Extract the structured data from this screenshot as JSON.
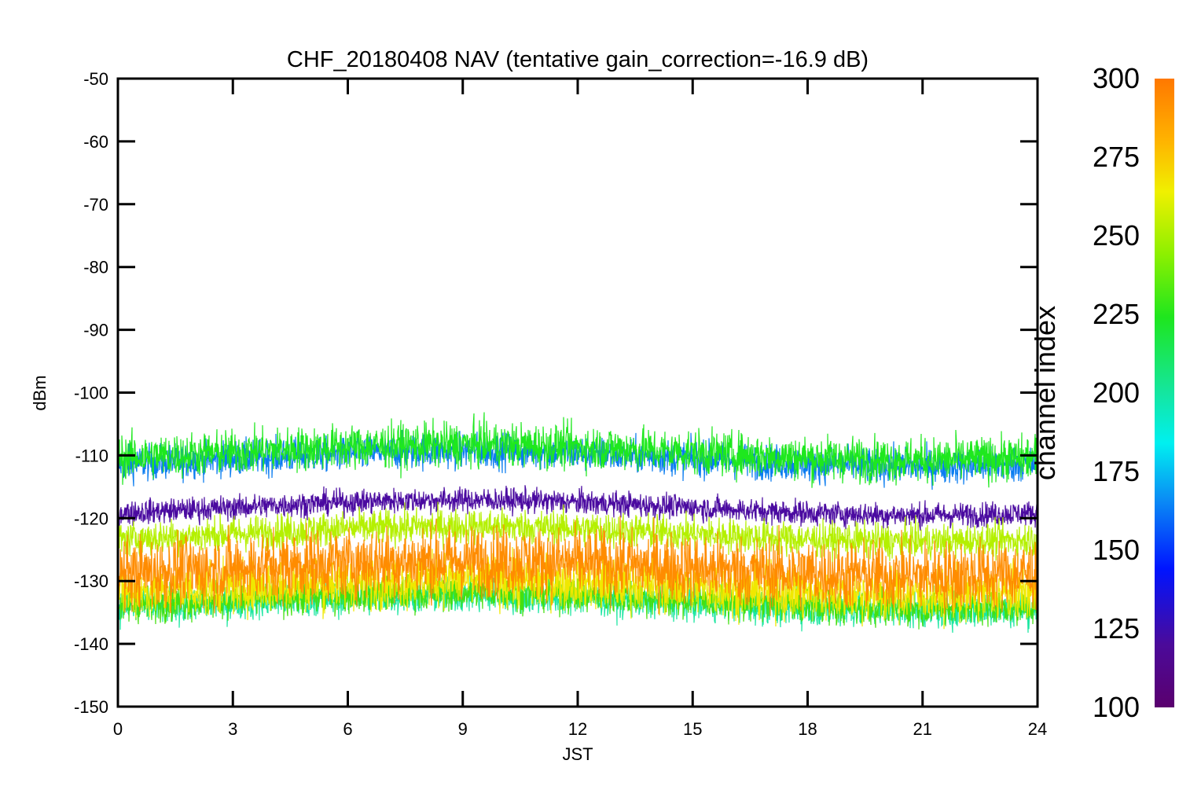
{
  "chart_data": {
    "type": "line",
    "title": "CHF_20180408 NAV (tentative gain_correction=-16.9 dB)",
    "xlabel": "JST",
    "ylabel": "dBm",
    "xlim": [
      0,
      24
    ],
    "ylim": [
      -150,
      -50
    ],
    "x_ticks": [
      "0",
      "3",
      "6",
      "9",
      "12",
      "15",
      "18",
      "21",
      "24"
    ],
    "y_ticks": [
      "-50",
      "-60",
      "-70",
      "-80",
      "-90",
      "-100",
      "-110",
      "-120",
      "-130",
      "-140",
      "-150"
    ],
    "grid": false,
    "colorbar": {
      "label": "channel index",
      "range": [
        100,
        300
      ],
      "ticks": [
        "100",
        "125",
        "150",
        "175",
        "200",
        "225",
        "250",
        "275",
        "300"
      ]
    },
    "bands": [
      {
        "channel_index": 155,
        "color": "#0a7cf0",
        "center": -110.5,
        "spread": 2.0
      },
      {
        "channel_index": 230,
        "color": "#1ee81e",
        "center": -109.5,
        "spread": 2.5
      },
      {
        "channel_index": 115,
        "color": "#4a0aa0",
        "center": -118.3,
        "spread": 1.4
      },
      {
        "channel_index": 200,
        "color": "#1ae6a0",
        "center": -133.5,
        "spread": 2.0
      },
      {
        "channel_index": 240,
        "color": "#44e010",
        "center": -133.0,
        "spread": 2.0
      },
      {
        "channel_index": 260,
        "color": "#b4f000",
        "center": -122.5,
        "spread": 2.0
      },
      {
        "channel_index": 275,
        "color": "#f0e800",
        "center": -131.0,
        "spread": 3.0
      },
      {
        "channel_index": 295,
        "color": "#ff8c00",
        "center": -128.0,
        "spread": 4.0
      }
    ]
  }
}
